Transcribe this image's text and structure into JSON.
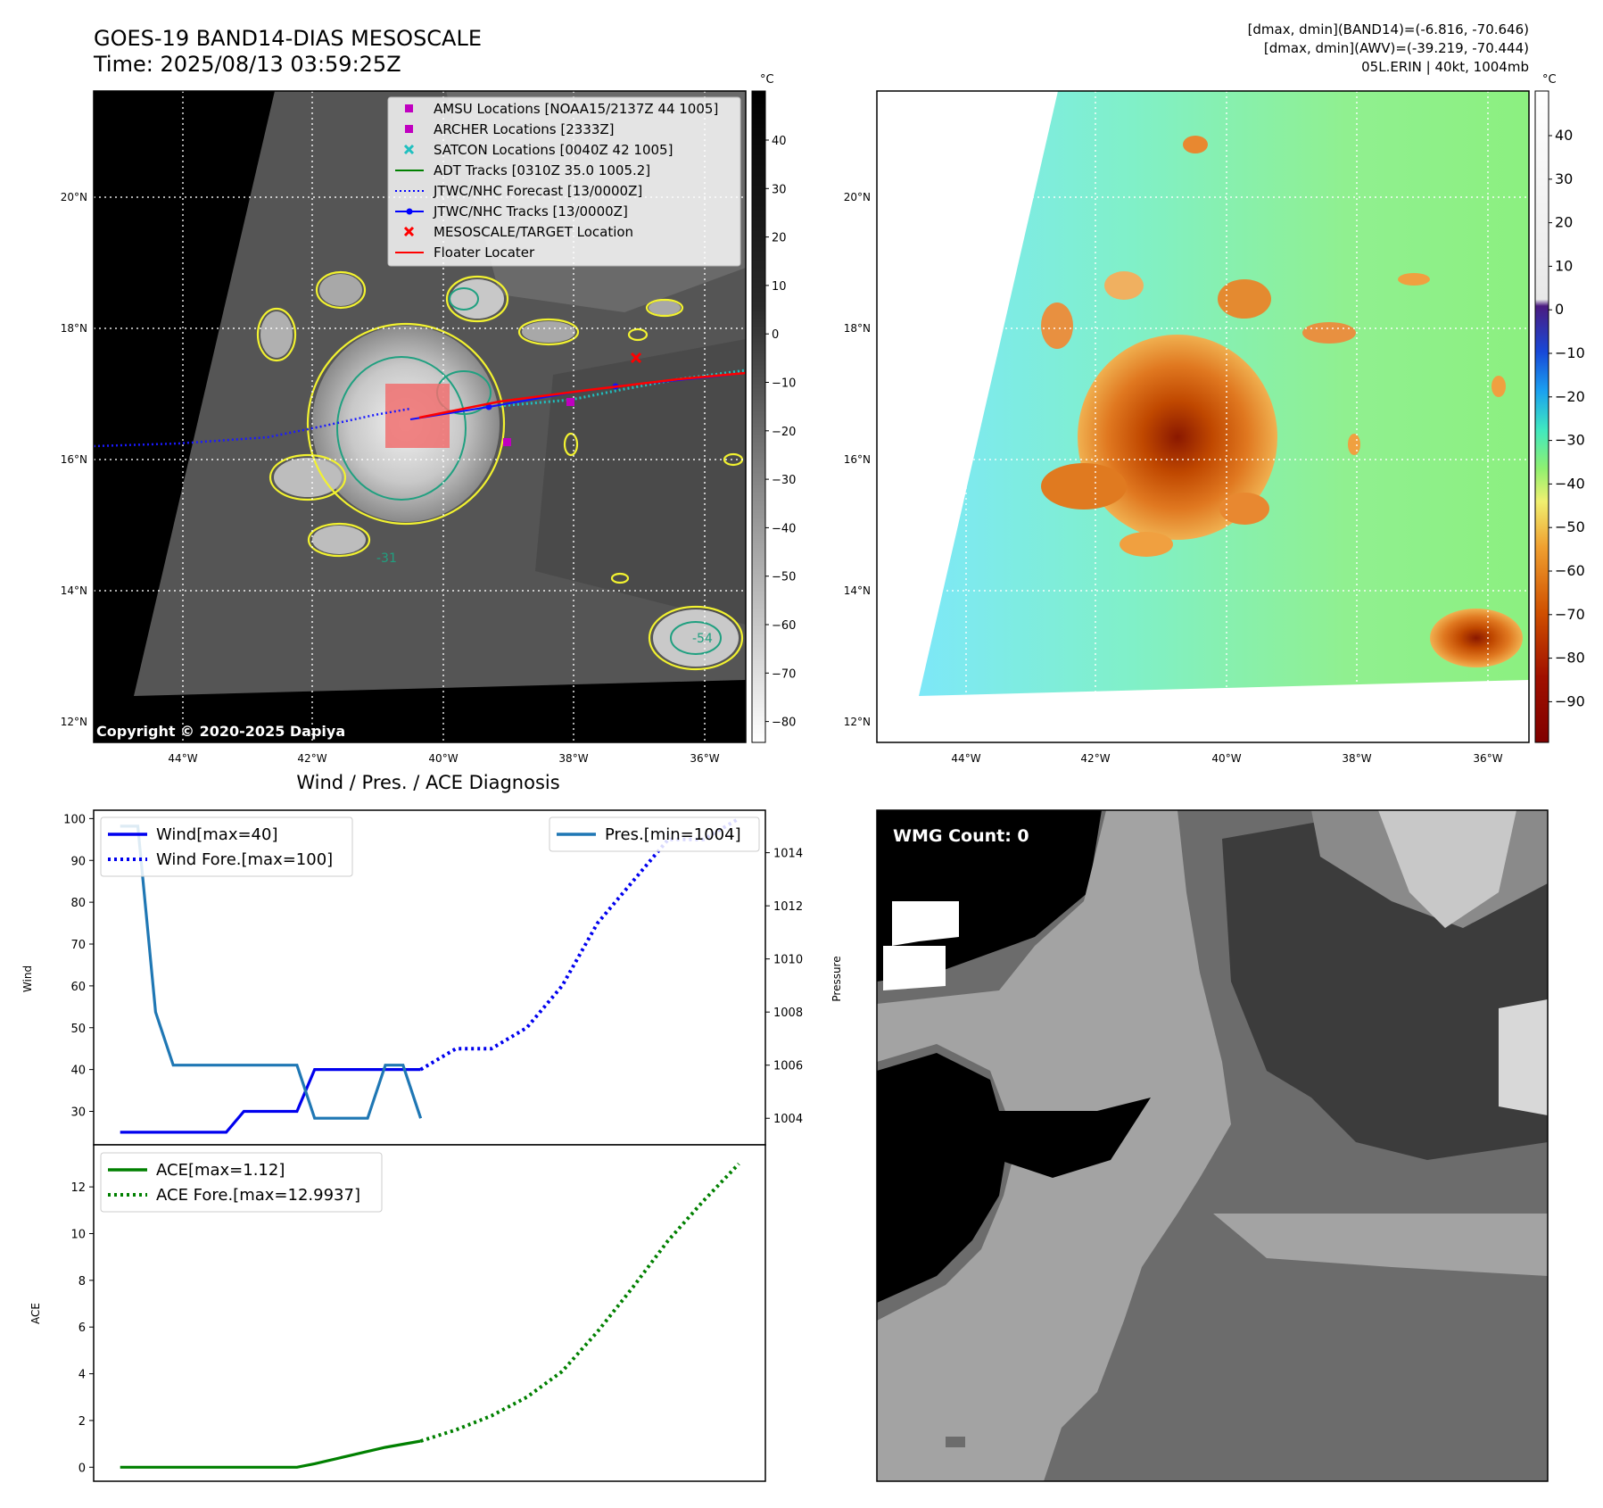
{
  "header": {
    "title_line1": "GOES-19 BAND14-DIAS MESOSCALE",
    "title_line2": "Time: 2025/08/13 03:59:25Z",
    "info_line1": "[dmax, dmin](BAND14)=(-6.816, -70.646)",
    "info_line2": "[dmax, dmin](AWV)=(-39.219, -70.444)",
    "info_line3": "05L.ERIN | 40kt, 1004mb"
  },
  "maps": {
    "lat_labels": [
      "20°N",
      "18°N",
      "16°N",
      "14°N",
      "12°N"
    ],
    "lon_labels": [
      "44°W",
      "42°W",
      "40°W",
      "38°W",
      "36°W"
    ],
    "copyright": "Copyright © 2020-2025 Dapiya",
    "colorbar_unit": "°C",
    "colorbar_left_ticks": [
      "40",
      "30",
      "20",
      "10",
      "0",
      "−10",
      "−20",
      "−30",
      "−40",
      "−50",
      "−60",
      "−70",
      "−80"
    ],
    "colorbar_right_ticks": [
      "40",
      "30",
      "20",
      "10",
      "0",
      "−10",
      "−20",
      "−30",
      "−40",
      "−50",
      "−60",
      "−70",
      "−80",
      "−90"
    ],
    "contour_label": "-31",
    "contour_label_2": "-54",
    "legend": [
      {
        "label": "AMSU Locations [NOAA15/2137Z 44 1005]",
        "marker": "square",
        "color": "#c000c0"
      },
      {
        "label": "ARCHER Locations [2333Z]",
        "marker": "square",
        "color": "#c000c0"
      },
      {
        "label": "SATCON Locations [0040Z 42 1005]",
        "marker": "x",
        "color": "#20c0c0"
      },
      {
        "label": "ADT Tracks [0310Z 35.0 1005.2]",
        "marker": "line",
        "color": "#008000"
      },
      {
        "label": "JTWC/NHC Forecast [13/0000Z]",
        "marker": "dotted",
        "color": "#0000ff"
      },
      {
        "label": "JTWC/NHC Tracks [13/0000Z]",
        "marker": "line-dot",
        "color": "#0000ff"
      },
      {
        "label": "MESOSCALE/TARGET Location",
        "marker": "x",
        "color": "#ff0000"
      },
      {
        "label": "Floater Locater",
        "marker": "line",
        "color": "#ff0000"
      }
    ]
  },
  "wmg": {
    "label": "WMG Count: 0"
  },
  "chart_data": [
    {
      "type": "line",
      "title": "Wind / Pres. / ACE Diagnosis",
      "ylabel": "Wind",
      "y2label": "Pressure",
      "ylim": [
        22,
        102
      ],
      "y2lim": [
        1003.0,
        1015.6
      ],
      "yticks": [
        30,
        40,
        50,
        60,
        70,
        80,
        90,
        100
      ],
      "y2ticks": [
        1004,
        1006,
        1008,
        1010,
        1012,
        1014
      ],
      "series": [
        {
          "name": "Wind[max=40]",
          "style": "solid",
          "color": "#0000ee",
          "axis": "left",
          "x": [
            0,
            1,
            2,
            3,
            4,
            5,
            6,
            7,
            8,
            9,
            10,
            11,
            12,
            13,
            14,
            15,
            16,
            17
          ],
          "values": [
            25,
            25,
            25,
            25,
            25,
            25,
            25,
            30,
            30,
            30,
            30,
            40,
            40,
            40,
            40,
            40,
            40,
            40
          ]
        },
        {
          "name": "Wind Fore.[max=100]",
          "style": "dotted",
          "color": "#0000ee",
          "axis": "left",
          "x": [
            17,
            19,
            21,
            23,
            25,
            27,
            29,
            31,
            33,
            35
          ],
          "values": [
            40,
            45,
            45,
            50,
            60,
            75,
            85,
            95,
            95,
            100
          ]
        },
        {
          "name": "Pres.[min=1004]",
          "style": "solid",
          "color": "#1f77b4",
          "axis": "right",
          "x": [
            0,
            1,
            2,
            3,
            4,
            5,
            6,
            7,
            8,
            9,
            10,
            11,
            12,
            13,
            14,
            15,
            16,
            17
          ],
          "values": [
            1015,
            1015,
            1008,
            1006,
            1006,
            1006,
            1006,
            1006,
            1006,
            1006,
            1006,
            1004,
            1004,
            1004,
            1004,
            1006,
            1006,
            1004
          ]
        }
      ]
    },
    {
      "type": "line",
      "ylabel": "ACE",
      "ylim": [
        -0.6,
        13.8
      ],
      "yticks": [
        0,
        2,
        4,
        6,
        8,
        10,
        12
      ],
      "series": [
        {
          "name": "ACE[max=1.12]",
          "style": "solid",
          "color": "#008000",
          "x": [
            0,
            2,
            4,
            6,
            8,
            10,
            11,
            13,
            15,
            17
          ],
          "values": [
            0,
            0,
            0,
            0,
            0,
            0,
            0.15,
            0.5,
            0.85,
            1.12
          ]
        },
        {
          "name": "ACE Fore.[max=12.9937]",
          "style": "dotted",
          "color": "#008000",
          "x": [
            17,
            19,
            21,
            23,
            25,
            27,
            29,
            31,
            33,
            35
          ],
          "values": [
            1.12,
            1.6,
            2.2,
            3.0,
            4.1,
            5.8,
            7.7,
            9.7,
            11.4,
            12.99
          ]
        }
      ]
    }
  ]
}
